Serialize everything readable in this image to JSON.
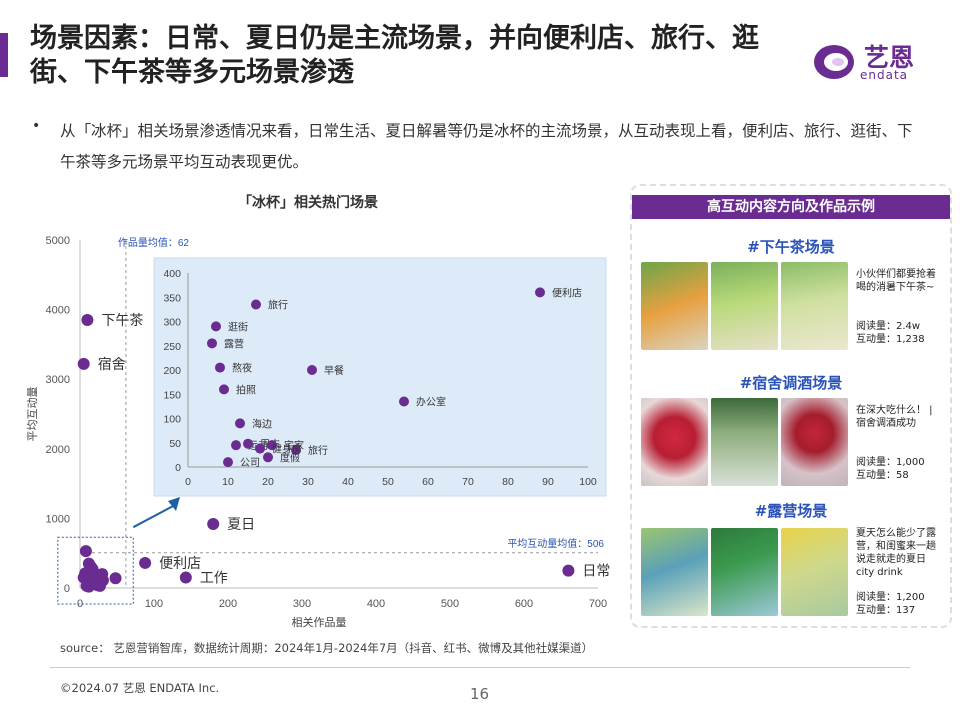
{
  "page": {
    "title": "场景因素：日常、夏日仍是主流场景，并向便利店、旅行、逛街、下午茶等多元场景渗透",
    "bullet_marker": "•",
    "bullet_text": "从「冰杯」相关场景渗透情况来看，日常生活、夏日解暑等仍是冰杯的主流场景，从互动表现上看，便利店、旅行、逛街、下午茶等多元场景平均互动表现更优。",
    "source": "source： 艺恩营销智库，数据统计周期：2024年1月-2024年7月（抖音、红书、微博及其他社媒渠道）",
    "copyright": "©2024.07 艺恩 ENDATA Inc.",
    "page_number": "16"
  },
  "logo": {
    "cn": "艺恩",
    "en": "endata",
    "color": "#6a2c91"
  },
  "colors": {
    "accent": "#6a2c91",
    "point": "#6a2c91",
    "inset_bg": "#ddeaf8",
    "link_blue": "#2a53b8",
    "arrow": "#1f5fa8"
  },
  "chart_data": [
    {
      "type": "scatter",
      "title": "「冰杯」相关热门场景",
      "xlabel": "相关作品量",
      "ylabel": "平均互动量",
      "xlim": [
        0,
        700
      ],
      "ylim": [
        0,
        5000
      ],
      "xticks": [
        "0",
        "100",
        "200",
        "300",
        "400",
        "500",
        "600",
        "700"
      ],
      "yticks": [
        "0",
        "1000",
        "2000",
        "3000",
        "4000",
        "5000"
      ],
      "mean_x_label": "作品量均值：62",
      "mean_x": 62,
      "mean_y_label": "平均互动量均值：506",
      "mean_y": 506,
      "points": [
        {
          "label": "下午茶",
          "x": 10,
          "y": 3850
        },
        {
          "label": "宿舍",
          "x": 5,
          "y": 3220
        },
        {
          "label": "夏日",
          "x": 180,
          "y": 920
        },
        {
          "label": "便利店",
          "x": 88,
          "y": 360
        },
        {
          "label": "工作",
          "x": 143,
          "y": 150
        },
        {
          "label": "日常",
          "x": 660,
          "y": 250
        },
        {
          "label": "",
          "x": 8,
          "y": 530
        },
        {
          "label": "",
          "x": 12,
          "y": 350
        },
        {
          "label": "",
          "x": 15,
          "y": 300
        },
        {
          "label": "",
          "x": 17,
          "y": 270
        },
        {
          "label": "",
          "x": 7,
          "y": 210
        },
        {
          "label": "",
          "x": 11,
          "y": 190
        },
        {
          "label": "",
          "x": 5,
          "y": 150
        },
        {
          "label": "",
          "x": 22,
          "y": 190
        },
        {
          "label": "",
          "x": 30,
          "y": 200
        },
        {
          "label": "",
          "x": 31,
          "y": 110
        },
        {
          "label": "",
          "x": 48,
          "y": 140
        },
        {
          "label": "",
          "x": 19,
          "y": 90
        },
        {
          "label": "",
          "x": 24,
          "y": 40
        },
        {
          "label": "",
          "x": 12,
          "y": 20
        },
        {
          "label": "",
          "x": 9,
          "y": 30
        },
        {
          "label": "",
          "x": 27,
          "y": 30
        }
      ]
    },
    {
      "type": "scatter",
      "title": "",
      "xlim": [
        0,
        100
      ],
      "ylim": [
        0,
        400
      ],
      "xticks": [
        "0",
        "10",
        "20",
        "30",
        "40",
        "50",
        "60",
        "70",
        "80",
        "90",
        "100"
      ],
      "yticks": [
        "0",
        "50",
        "100",
        "150",
        "200",
        "250",
        "300",
        "350",
        "400"
      ],
      "points": [
        {
          "label": "便利店",
          "x": 88,
          "y": 360
        },
        {
          "label": "旅行",
          "x": 17,
          "y": 335
        },
        {
          "label": "逛街",
          "x": 7,
          "y": 290
        },
        {
          "label": "露营",
          "x": 6,
          "y": 255
        },
        {
          "label": "熬夜",
          "x": 8,
          "y": 205
        },
        {
          "label": "早餐",
          "x": 31,
          "y": 200
        },
        {
          "label": "拍照",
          "x": 9,
          "y": 160
        },
        {
          "label": "办公室",
          "x": 54,
          "y": 135
        },
        {
          "label": "海边",
          "x": 13,
          "y": 90
        },
        {
          "label": "运动",
          "x": 12,
          "y": 45
        },
        {
          "label": "周末",
          "x": 15,
          "y": 48
        },
        {
          "label": "宅家",
          "x": 21,
          "y": 45
        },
        {
          "label": "旅行",
          "x": 27,
          "y": 35
        },
        {
          "label": "健身房",
          "x": 18,
          "y": 38
        },
        {
          "label": "公司",
          "x": 10,
          "y": 10
        },
        {
          "label": "度假",
          "x": 20,
          "y": 20
        }
      ]
    }
  ],
  "examples": {
    "header": "高互动内容方向及作品示例",
    "sections": [
      {
        "title": "#下午茶场景",
        "desc": "小伙伴们都要抢着喝的消暑下午茶~",
        "reads": "阅读量：2.4w",
        "interactions": "互动量：1,238",
        "image_labels": [
          "tea-drinks-outdoor-photo",
          "tea-drinks-lawn-photo",
          "tea-drinks-table-photo"
        ]
      },
      {
        "title": "#宿舍调酒场景",
        "desc": "在深大吃什么！ | 宿舍调酒成功",
        "reads": "阅读量：1,000",
        "interactions": "互动量：58",
        "image_labels": [
          "cherry-ice-cup-photo",
          "ice-cup-bottle-photo",
          "cherry-drink-cup-photo"
        ]
      },
      {
        "title": "#露营场景",
        "desc": "夏天怎么能少了露营，和闺蜜来一趟说走就走的夏日city drink",
        "reads": "阅读量：1,200",
        "interactions": "互动量：137",
        "image_labels": [
          "camping-drinks-photo",
          "beer-cans-ice-photo",
          "lemon-ice-cups-photo"
        ]
      }
    ]
  }
}
